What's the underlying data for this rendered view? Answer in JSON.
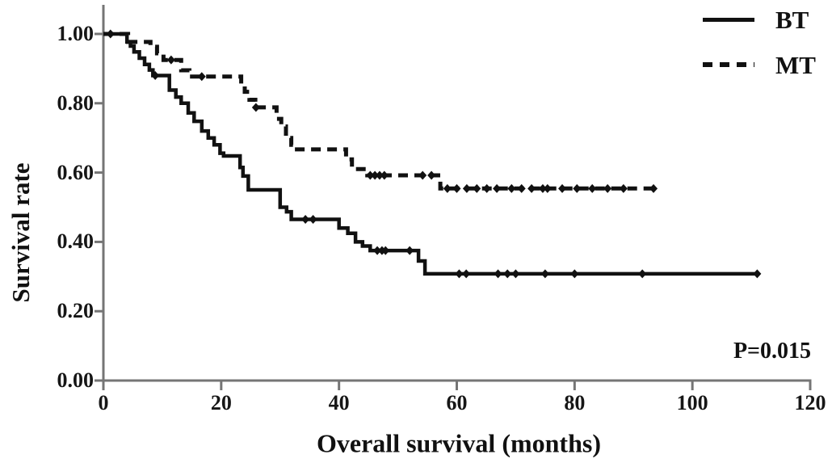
{
  "chart_data": {
    "type": "line",
    "subtype": "kaplan-meier-step",
    "title": "",
    "xlabel": "Overall survival (months)",
    "ylabel": "Survival rate",
    "xlim": [
      0,
      120
    ],
    "ylim": [
      0.0,
      1.0
    ],
    "x_ticks": [
      0,
      20,
      40,
      60,
      80,
      100,
      120
    ],
    "x_tick_labels": [
      "0",
      "20",
      "40",
      "60",
      "80",
      "100",
      "120"
    ],
    "y_ticks": [
      0.0,
      0.2,
      0.4,
      0.6,
      0.8,
      1.0
    ],
    "y_tick_labels": [
      "0.00",
      "0.20",
      "0.40",
      "0.60",
      "0.80",
      "1.00"
    ],
    "grid": false,
    "legend_position": "top-right",
    "annotation": "P=0.015",
    "axis_color": "#757575",
    "curve_color": "#111111",
    "series": [
      {
        "name": "BT",
        "line_style": "solid",
        "color": "#111111",
        "start": [
          0,
          1.0
        ],
        "end_time": 111,
        "steps": [
          [
            4,
            0.977
          ],
          [
            4.6,
            0.965
          ],
          [
            5.2,
            0.948
          ],
          [
            6.1,
            0.93
          ],
          [
            7,
            0.912
          ],
          [
            7.8,
            0.896
          ],
          [
            8.4,
            0.88
          ],
          [
            11.2,
            0.838
          ],
          [
            12.3,
            0.818
          ],
          [
            13.2,
            0.8
          ],
          [
            14.4,
            0.772
          ],
          [
            15.4,
            0.748
          ],
          [
            16.7,
            0.72
          ],
          [
            17.8,
            0.7
          ],
          [
            18.8,
            0.68
          ],
          [
            19.8,
            0.656
          ],
          [
            20.4,
            0.648
          ],
          [
            23.2,
            0.615
          ],
          [
            23.7,
            0.59
          ],
          [
            24.6,
            0.55
          ],
          [
            30,
            0.5
          ],
          [
            31.1,
            0.487
          ],
          [
            31.9,
            0.465
          ],
          [
            40,
            0.44
          ],
          [
            41.5,
            0.425
          ],
          [
            42.8,
            0.4
          ],
          [
            44,
            0.388
          ],
          [
            45.3,
            0.375
          ],
          [
            53.5,
            0.345
          ],
          [
            54.6,
            0.308
          ]
        ],
        "censor_marks": [
          [
            1.2,
            1.0
          ],
          [
            8.8,
            0.88
          ],
          [
            34.3,
            0.465
          ],
          [
            35.6,
            0.465
          ],
          [
            46.5,
            0.375
          ],
          [
            47.3,
            0.375
          ],
          [
            47.9,
            0.375
          ],
          [
            52,
            0.375
          ],
          [
            60.4,
            0.308
          ],
          [
            61.6,
            0.308
          ],
          [
            67,
            0.308
          ],
          [
            68.6,
            0.308
          ],
          [
            70,
            0.308
          ],
          [
            75,
            0.308
          ],
          [
            80,
            0.308
          ],
          [
            91.5,
            0.308
          ],
          [
            111,
            0.308
          ]
        ]
      },
      {
        "name": "MT",
        "line_style": "dashed",
        "color": "#111111",
        "start": [
          0,
          1.0
        ],
        "end_time": 93.4,
        "steps": [
          [
            4.2,
            0.977
          ],
          [
            8,
            0.963
          ],
          [
            9.1,
            0.944
          ],
          [
            10.2,
            0.925
          ],
          [
            13.2,
            0.895
          ],
          [
            14.6,
            0.877
          ],
          [
            23.4,
            0.855
          ],
          [
            24,
            0.833
          ],
          [
            24.8,
            0.81
          ],
          [
            25.8,
            0.788
          ],
          [
            29.4,
            0.755
          ],
          [
            30.2,
            0.733
          ],
          [
            31,
            0.7
          ],
          [
            31.9,
            0.68
          ],
          [
            32.4,
            0.667
          ],
          [
            41.2,
            0.638
          ],
          [
            42.2,
            0.61
          ],
          [
            44.8,
            0.592
          ],
          [
            57.2,
            0.554
          ]
        ],
        "censor_marks": [
          [
            11.5,
            0.925
          ],
          [
            16.7,
            0.877
          ],
          [
            25.9,
            0.788
          ],
          [
            45.3,
            0.592
          ],
          [
            46.1,
            0.592
          ],
          [
            46.9,
            0.592
          ],
          [
            47.7,
            0.592
          ],
          [
            54.2,
            0.592
          ],
          [
            55.7,
            0.592
          ],
          [
            58.4,
            0.554
          ],
          [
            60,
            0.554
          ],
          [
            61.7,
            0.554
          ],
          [
            63.4,
            0.554
          ],
          [
            65.1,
            0.554
          ],
          [
            66.8,
            0.554
          ],
          [
            69.3,
            0.554
          ],
          [
            71,
            0.554
          ],
          [
            72.7,
            0.554
          ],
          [
            74.6,
            0.554
          ],
          [
            75.4,
            0.554
          ],
          [
            77.9,
            0.554
          ],
          [
            80.4,
            0.554
          ],
          [
            83,
            0.554
          ],
          [
            85.6,
            0.554
          ],
          [
            88.3,
            0.554
          ],
          [
            93.4,
            0.554
          ]
        ]
      }
    ]
  }
}
